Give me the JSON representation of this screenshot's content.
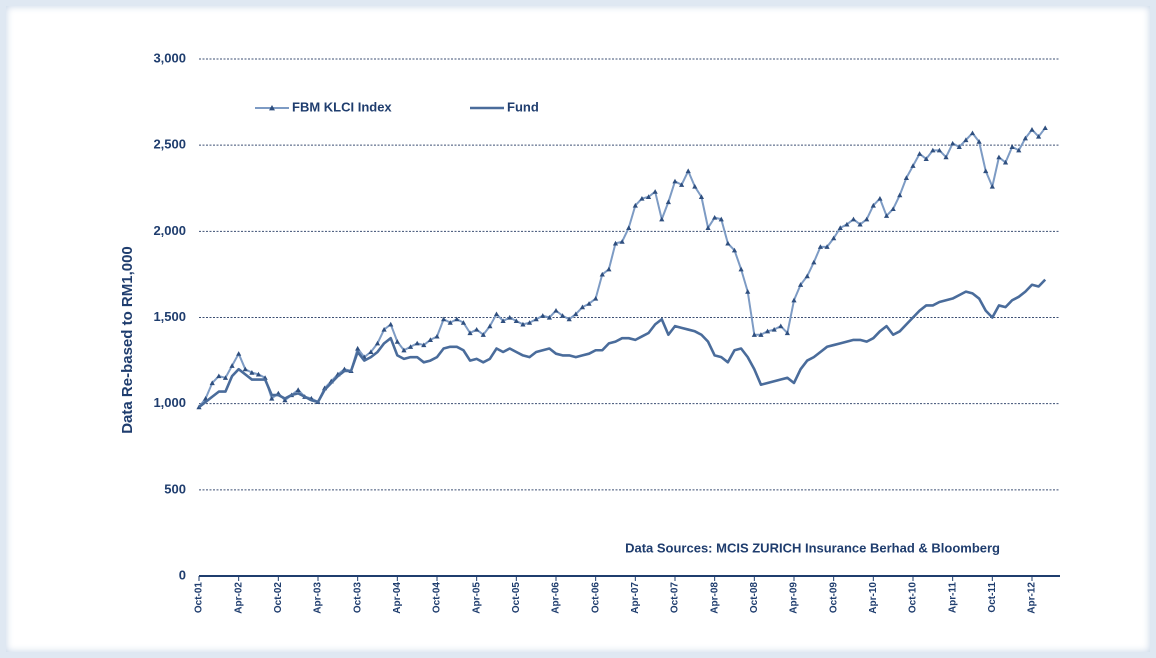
{
  "chart_data": {
    "type": "line",
    "y_label": "Data Re-based to RM1,000",
    "annotation": "Data Sources: MCIS ZURICH Insurance Berhad & Bloomberg",
    "categories": [
      "Oct-01",
      null,
      null,
      null,
      null,
      null,
      "Apr-02",
      null,
      null,
      null,
      null,
      null,
      "Oct-02",
      null,
      null,
      null,
      null,
      null,
      "Apr-03",
      null,
      null,
      null,
      null,
      null,
      "Oct-03",
      null,
      null,
      null,
      null,
      null,
      "Apr-04",
      null,
      null,
      null,
      null,
      null,
      "Oct-04",
      null,
      null,
      null,
      null,
      null,
      "Apr-05",
      null,
      null,
      null,
      null,
      null,
      "Oct-05",
      null,
      null,
      null,
      null,
      null,
      "Apr-06",
      null,
      null,
      null,
      null,
      null,
      "Oct-06",
      null,
      null,
      null,
      null,
      null,
      "Apr-07",
      null,
      null,
      null,
      null,
      null,
      "Oct-07",
      null,
      null,
      null,
      null,
      null,
      "Apr-08",
      null,
      null,
      null,
      null,
      null,
      "Oct-08",
      null,
      null,
      null,
      null,
      null,
      "Apr-09",
      null,
      null,
      null,
      null,
      null,
      "Oct-09",
      null,
      null,
      null,
      null,
      null,
      "Apr-10",
      null,
      null,
      null,
      null,
      null,
      "Oct-10",
      null,
      null,
      null,
      null,
      null,
      "Apr-11",
      null,
      null,
      null,
      null,
      null,
      "Oct-11",
      null,
      null,
      null,
      null,
      null,
      "Apr-12",
      null,
      null
    ],
    "series": [
      {
        "name": "FBM KLCI Index",
        "color": "#7d9bc4",
        "marker": "triangle",
        "values": [
          980,
          1030,
          1120,
          1160,
          1150,
          1220,
          1290,
          1200,
          1180,
          1170,
          1150,
          1030,
          1060,
          1020,
          1050,
          1080,
          1040,
          1030,
          1010,
          1090,
          1130,
          1170,
          1200,
          1190,
          1320,
          1270,
          1300,
          1350,
          1430,
          1460,
          1360,
          1310,
          1330,
          1350,
          1340,
          1370,
          1390,
          1490,
          1470,
          1490,
          1470,
          1410,
          1430,
          1400,
          1450,
          1520,
          1480,
          1500,
          1480,
          1460,
          1470,
          1490,
          1510,
          1500,
          1540,
          1510,
          1490,
          1520,
          1560,
          1580,
          1610,
          1750,
          1780,
          1930,
          1940,
          2020,
          2150,
          2190,
          2200,
          2230,
          2070,
          2170,
          2290,
          2270,
          2350,
          2260,
          2200,
          2020,
          2080,
          2070,
          1930,
          1890,
          1780,
          1650,
          1400,
          1400,
          1420,
          1430,
          1450,
          1410,
          1600,
          1690,
          1740,
          1820,
          1910,
          1910,
          1960,
          2020,
          2040,
          2070,
          2040,
          2070,
          2150,
          2190,
          2090,
          2130,
          2210,
          2310,
          2380,
          2450,
          2420,
          2470,
          2470,
          2430,
          2510,
          2490,
          2530,
          2570,
          2520,
          2350,
          2260,
          2430,
          2400,
          2490,
          2470,
          2540,
          2590,
          2550,
          2600
        ]
      },
      {
        "name": "Fund",
        "color": "#4a6c9b",
        "values": [
          980,
          1010,
          1040,
          1070,
          1070,
          1160,
          1200,
          1170,
          1140,
          1140,
          1140,
          1050,
          1050,
          1030,
          1050,
          1060,
          1040,
          1020,
          1010,
          1080,
          1120,
          1160,
          1190,
          1190,
          1300,
          1250,
          1270,
          1300,
          1350,
          1380,
          1280,
          1260,
          1270,
          1270,
          1240,
          1250,
          1270,
          1320,
          1330,
          1330,
          1310,
          1250,
          1260,
          1240,
          1260,
          1320,
          1300,
          1320,
          1300,
          1280,
          1270,
          1300,
          1310,
          1320,
          1290,
          1280,
          1280,
          1270,
          1280,
          1290,
          1310,
          1310,
          1350,
          1360,
          1380,
          1380,
          1370,
          1390,
          1410,
          1460,
          1490,
          1400,
          1450,
          1440,
          1430,
          1420,
          1400,
          1360,
          1280,
          1270,
          1240,
          1310,
          1320,
          1270,
          1200,
          1110,
          1120,
          1130,
          1140,
          1150,
          1120,
          1200,
          1250,
          1270,
          1300,
          1330,
          1340,
          1350,
          1360,
          1370,
          1370,
          1360,
          1380,
          1420,
          1450,
          1400,
          1420,
          1460,
          1500,
          1540,
          1570,
          1570,
          1590,
          1600,
          1610,
          1630,
          1650,
          1640,
          1610,
          1540,
          1500,
          1570,
          1560,
          1600,
          1620,
          1650,
          1690,
          1680,
          1720
        ]
      }
    ],
    "ylim": [
      0,
      3000
    ],
    "yticks": [
      0,
      500,
      {
        "value": 1000,
        "label": "1,000"
      },
      {
        "value": 1500,
        "label": "1,500"
      },
      {
        "value": 2000,
        "label": "2,000"
      },
      {
        "value": 2500,
        "label": "2,500"
      },
      {
        "value": 3000,
        "label": "3,000"
      }
    ],
    "grid": true
  }
}
